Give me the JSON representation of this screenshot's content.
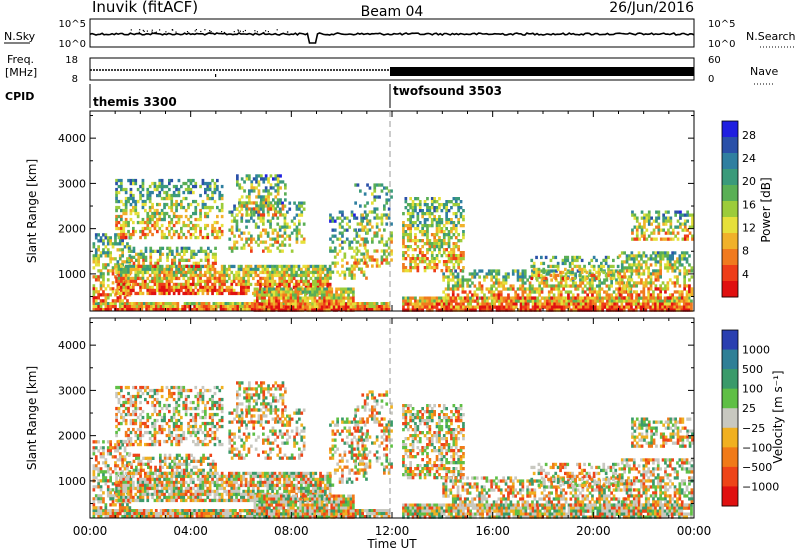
{
  "header": {
    "station": "Inuvik (fitACF)",
    "beam": "Beam 04",
    "date": "26/Jun/2016"
  },
  "strips": {
    "nsky_label": "N.Sky",
    "nsky_ticks": [
      "10^5",
      "10^0"
    ],
    "nsearch_label": "N.Search",
    "nsearch_ticks": [
      "10^5",
      "10^0"
    ],
    "freq_label": "Freq.",
    "freq_unit": "[MHz]",
    "freq_ticks": [
      "18",
      "8"
    ],
    "nave_label": "Nave",
    "nave_ticks": [
      "60",
      "0"
    ],
    "cpid_label": "CPID"
  },
  "cpid_segments": [
    {
      "name": "themis 3300",
      "start_hour": 0,
      "end_hour": 12
    },
    {
      "name": "twofsound 3503",
      "start_hour": 12,
      "end_hour": 24
    }
  ],
  "chart_data": [
    {
      "type": "heatmap",
      "ylabel": "Slant Range [km]",
      "xlabel": "Time UT",
      "x_ticks": [
        "00:00",
        "04:00",
        "08:00",
        "12:00",
        "16:00",
        "20:00",
        "00:00"
      ],
      "y_ticks": [
        "1000",
        "2000",
        "3000",
        "4000"
      ],
      "xlim_hours": [
        0,
        24
      ],
      "ylim": [
        180,
        4600
      ],
      "colorbar": {
        "label": "Power [dB]",
        "ticks": [
          "4",
          "8",
          "12",
          "16",
          "20",
          "24",
          "28"
        ],
        "colors": [
          "#1f1fe0",
          "#2a50a8",
          "#2f7fa0",
          "#3a9a7a",
          "#5aaf55",
          "#9ccc3a",
          "#e6e03a",
          "#f0b12a",
          "#f07a1e",
          "#ee3d18",
          "#e01010"
        ]
      }
    },
    {
      "type": "heatmap",
      "ylabel": "Slant Range [km]",
      "xlabel": "Time UT",
      "x_ticks": [
        "00:00",
        "04:00",
        "08:00",
        "12:00",
        "16:00",
        "20:00",
        "00:00"
      ],
      "y_ticks": [
        "1000",
        "2000",
        "3000",
        "4000"
      ],
      "xlim_hours": [
        0,
        24
      ],
      "ylim": [
        180,
        4600
      ],
      "colorbar": {
        "label": "Velocity [m s⁻¹]",
        "ticks": [
          "1000",
          "500",
          "100",
          "25",
          "−25",
          "−100",
          "−500",
          "−1000"
        ],
        "colors": [
          "#2a3fb0",
          "#2f7f96",
          "#3a9a6a",
          "#5fbf45",
          "#c8c8c0",
          "#f0b020",
          "#f07a18",
          "#ee4418",
          "#e01010"
        ]
      }
    }
  ],
  "x_axis_title": "Time UT"
}
